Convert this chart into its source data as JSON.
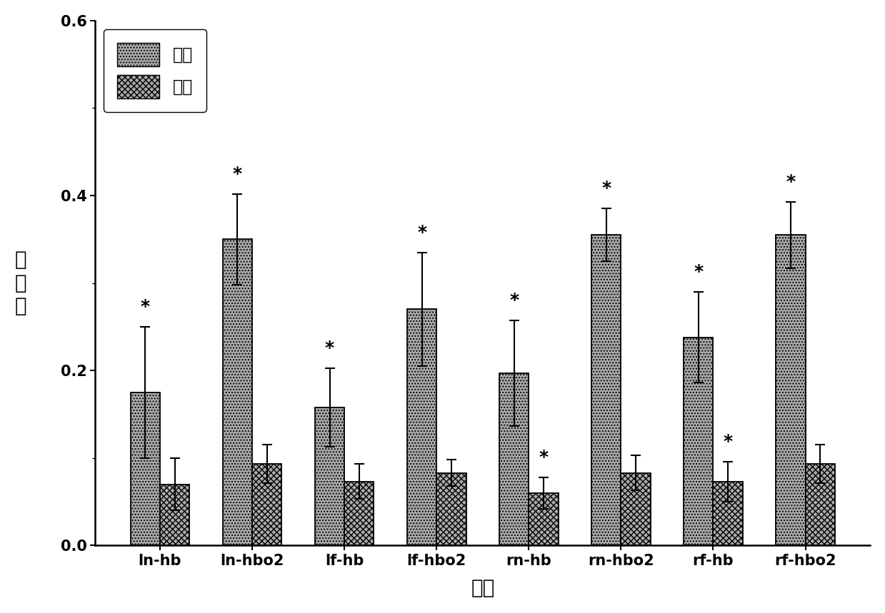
{
  "categories": [
    "ln-hb",
    "ln-hbo2",
    "lf-hb",
    "lf-hbo2",
    "rn-hb",
    "rn-hbo2",
    "rf-hb",
    "rf-hbo2"
  ],
  "anesthesia_values": [
    0.175,
    0.35,
    0.158,
    0.27,
    0.197,
    0.355,
    0.238,
    0.355
  ],
  "awake_values": [
    0.07,
    0.093,
    0.073,
    0.083,
    0.06,
    0.083,
    0.073,
    0.093
  ],
  "anesthesia_errors": [
    0.075,
    0.052,
    0.045,
    0.065,
    0.06,
    0.03,
    0.052,
    0.038
  ],
  "awake_errors": [
    0.03,
    0.022,
    0.02,
    0.015,
    0.018,
    0.02,
    0.023,
    0.022
  ],
  "xlabel": "信号",
  "ylabel_chars": [
    "样",
    "本",
    "熵"
  ],
  "ylim": [
    0.0,
    0.6
  ],
  "yticks": [
    0.0,
    0.2,
    0.4,
    0.6
  ],
  "legend_anesthesia": "麻醉",
  "legend_awake": "清醒",
  "bar_width": 0.32,
  "background_color": "#ffffff",
  "star_fontsize": 18,
  "label_fontsize": 18,
  "tick_fontsize": 15,
  "legend_fontsize": 17,
  "star_anesthesia": [
    true,
    true,
    true,
    true,
    true,
    true,
    true,
    true
  ],
  "star_awake": [
    false,
    false,
    false,
    false,
    true,
    false,
    true,
    false
  ]
}
